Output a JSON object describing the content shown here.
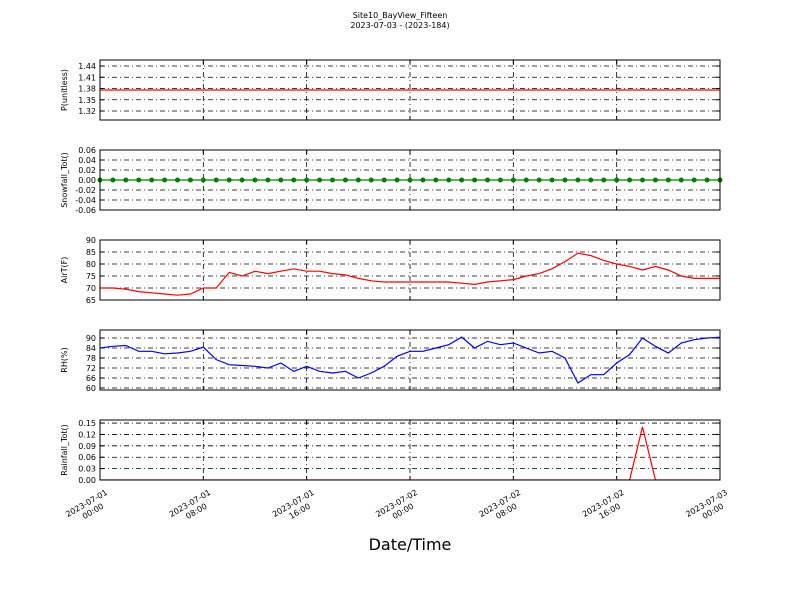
{
  "figure": {
    "title": "Site10_BayView_Fifteen",
    "subtitle": "2023-07-03 - (2023-184)",
    "xlabel": "Date/Time",
    "x": [
      "2023-07-01 00:00",
      "2023-07-01 01:00",
      "2023-07-01 02:00",
      "2023-07-01 03:00",
      "2023-07-01 04:00",
      "2023-07-01 05:00",
      "2023-07-01 06:00",
      "2023-07-01 07:00",
      "2023-07-01 08:00",
      "2023-07-01 09:00",
      "2023-07-01 10:00",
      "2023-07-01 11:00",
      "2023-07-01 12:00",
      "2023-07-01 13:00",
      "2023-07-01 14:00",
      "2023-07-01 15:00",
      "2023-07-01 16:00",
      "2023-07-01 17:00",
      "2023-07-01 18:00",
      "2023-07-01 19:00",
      "2023-07-01 20:00",
      "2023-07-01 21:00",
      "2023-07-01 22:00",
      "2023-07-01 23:00",
      "2023-07-02 00:00",
      "2023-07-02 01:00",
      "2023-07-02 02:00",
      "2023-07-02 03:00",
      "2023-07-02 04:00",
      "2023-07-02 05:00",
      "2023-07-02 06:00",
      "2023-07-02 07:00",
      "2023-07-02 08:00",
      "2023-07-02 09:00",
      "2023-07-02 10:00",
      "2023-07-02 11:00",
      "2023-07-02 12:00",
      "2023-07-02 13:00",
      "2023-07-02 14:00",
      "2023-07-02 15:00",
      "2023-07-02 16:00",
      "2023-07-02 17:00",
      "2023-07-02 18:00",
      "2023-07-02 19:00",
      "2023-07-02 20:00",
      "2023-07-02 21:00",
      "2023-07-02 22:00",
      "2023-07-02 23:00",
      "2023-07-03 00:00"
    ],
    "xlim": [
      "2023-07-01 00:00",
      "2023-07-03 00:00"
    ],
    "xticks": [
      {
        "value": "2023-07-01 00:00",
        "label": [
          "2023-07-01",
          "00:00"
        ]
      },
      {
        "value": "2023-07-01 08:00",
        "label": [
          "2023-07-01",
          "08:00"
        ]
      },
      {
        "value": "2023-07-01 16:00",
        "label": [
          "2023-07-01",
          "16:00"
        ]
      },
      {
        "value": "2023-07-02 00:00",
        "label": [
          "2023-07-02",
          "00:00"
        ]
      },
      {
        "value": "2023-07-02 08:00",
        "label": [
          "2023-07-02",
          "08:00"
        ]
      },
      {
        "value": "2023-07-02 16:00",
        "label": [
          "2023-07-02",
          "16:00"
        ]
      },
      {
        "value": "2023-07-03 00:00",
        "label": [
          "2023-07-03",
          "00:00"
        ]
      }
    ]
  },
  "chart_data": [
    {
      "type": "line",
      "ylabel": "P(unitless)",
      "ylim": [
        1.296,
        1.456
      ],
      "yticks": [
        1.32,
        1.35,
        1.38,
        1.41,
        1.44
      ],
      "grid": true,
      "series": [
        {
          "color": "#ff0000",
          "values": [
            1.376,
            1.376,
            1.376,
            1.376,
            1.376,
            1.376,
            1.376,
            1.376,
            1.376,
            1.376,
            1.376,
            1.376,
            1.376,
            1.376,
            1.376,
            1.376,
            1.376,
            1.376,
            1.376,
            1.376,
            1.376,
            1.376,
            1.376,
            1.376,
            1.376,
            1.376,
            1.376,
            1.376,
            1.376,
            1.376,
            1.376,
            1.376,
            1.376,
            1.376,
            1.376,
            1.376,
            1.376,
            1.376,
            1.376,
            1.376,
            1.376,
            1.376,
            1.376,
            1.376,
            1.376,
            1.376,
            1.376,
            1.376,
            1.376
          ]
        }
      ]
    },
    {
      "type": "line",
      "marker": true,
      "ylabel": "Snowfall_Tot()",
      "ylim": [
        -0.06,
        0.06
      ],
      "yticks": [
        0.06,
        0.04,
        0.02,
        {
          "value": 0,
          "label": "0.00"
        },
        -0.02,
        -0.04,
        -0.06
      ],
      "grid": true,
      "series": [
        {
          "color": "#008000",
          "values": [
            0,
            0,
            0,
            0,
            0,
            0,
            0,
            0,
            0,
            0,
            0,
            0,
            0,
            0,
            0,
            0,
            0,
            0,
            0,
            0,
            0,
            0,
            0,
            0,
            0,
            0,
            0,
            0,
            0,
            0,
            0,
            0,
            0,
            0,
            0,
            0,
            0,
            0,
            0,
            0,
            0,
            0,
            0,
            0,
            0,
            0,
            0,
            0,
            0
          ]
        }
      ]
    },
    {
      "type": "line",
      "ylabel": "AirT(F)",
      "ylim": [
        65,
        90
      ],
      "yticks": [
        65,
        70,
        75,
        80,
        85,
        90
      ],
      "grid": true,
      "series": [
        {
          "color": "#ff0000",
          "values": [
            70,
            70,
            69.5,
            68.5,
            68,
            67.5,
            67,
            67.5,
            70,
            70,
            76.5,
            75,
            77,
            76,
            77,
            78,
            77,
            77,
            76,
            75.5,
            74,
            73,
            72.5,
            72.5,
            72.5,
            72.5,
            72.5,
            72.5,
            72,
            71.5,
            72.5,
            73,
            73.5,
            75,
            76,
            78,
            81,
            84.5,
            83.5,
            81.5,
            80,
            79,
            77.5,
            79,
            77.5,
            75,
            74,
            74,
            74
          ]
        }
      ]
    },
    {
      "type": "line",
      "ylabel": "RH(%)",
      "ylim": [
        58.8,
        94.8
      ],
      "yticks": [
        60,
        66,
        72,
        78,
        84,
        90
      ],
      "grid": true,
      "series": [
        {
          "color": "#0000ff",
          "values": [
            84,
            85,
            85.5,
            82,
            82,
            80.5,
            81,
            82,
            84.5,
            77,
            74,
            73.5,
            73,
            72,
            75,
            70,
            73,
            70,
            69,
            70,
            66,
            69,
            73,
            79,
            82,
            82,
            84,
            86,
            90.5,
            84,
            88,
            86,
            87,
            84,
            81,
            82,
            78,
            63,
            68,
            68,
            75,
            80,
            90,
            85,
            81,
            87,
            89,
            90,
            90.5
          ]
        }
      ]
    },
    {
      "type": "line",
      "ylabel": "Rainfall_Tot()",
      "ylim": [
        0,
        0.158
      ],
      "yticks": [
        {
          "value": 0,
          "label": "0.00"
        },
        0.03,
        0.06,
        0.09,
        0.12,
        0.15
      ],
      "grid": true,
      "series": [
        {
          "color": "#ff0000",
          "values": [
            0,
            0,
            0,
            0,
            0,
            0,
            0,
            0,
            0,
            0,
            0,
            0,
            0,
            0,
            0,
            0,
            0,
            0,
            0,
            0,
            0,
            0,
            0,
            0,
            0,
            0,
            0,
            0,
            0,
            0,
            0,
            0,
            0,
            0,
            0,
            0,
            0,
            0,
            0,
            0,
            0,
            0,
            0.14,
            0,
            0,
            0,
            0,
            0,
            0
          ]
        }
      ]
    }
  ]
}
